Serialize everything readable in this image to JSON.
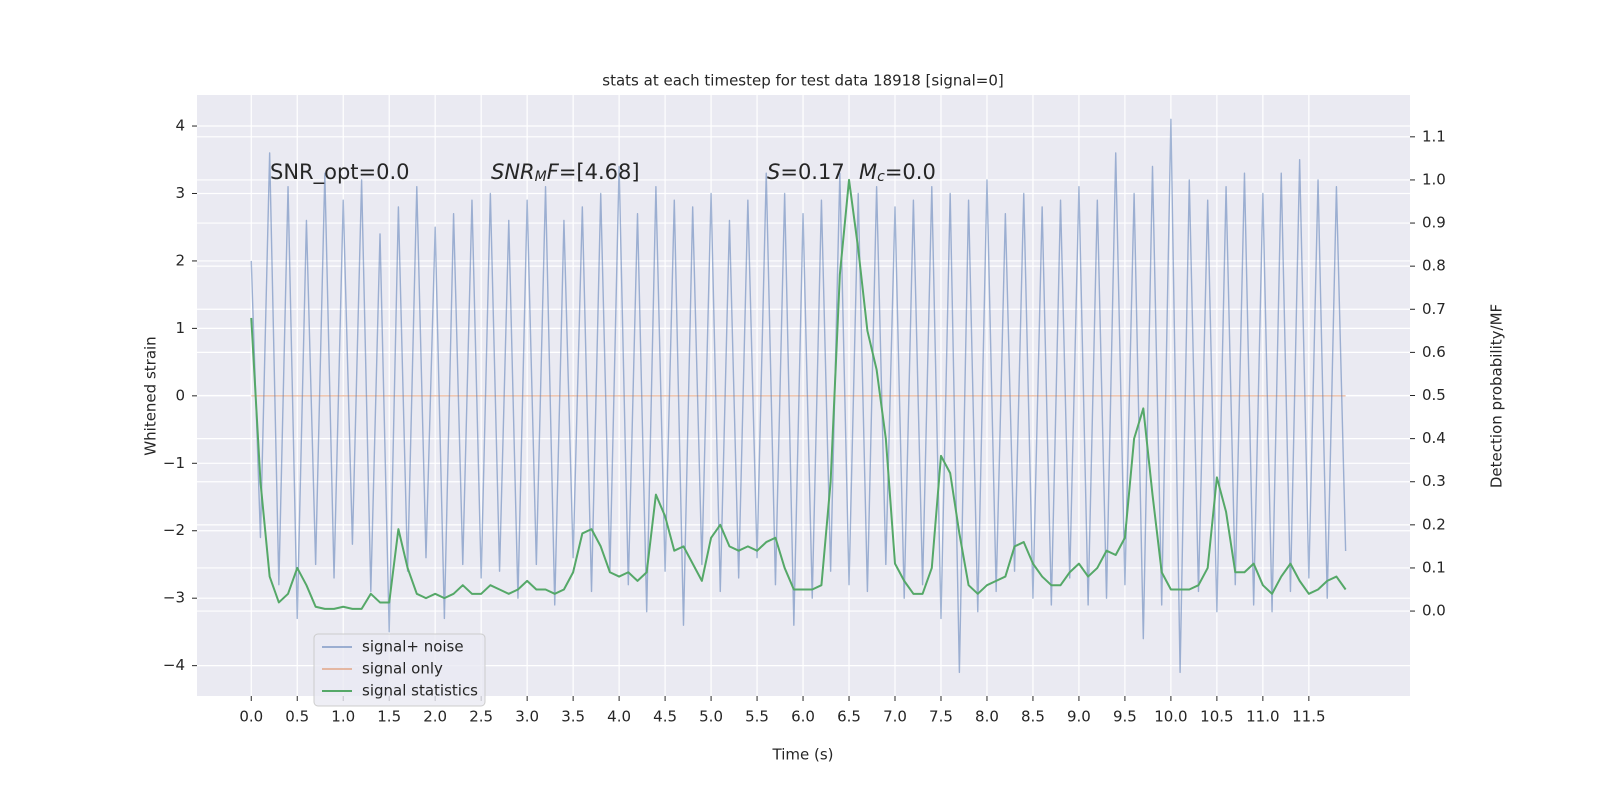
{
  "chart_data": {
    "type": "line",
    "title": "stats at each timestep for test data 18918 [signal=0]",
    "xlabel": "Time (s)",
    "ylabel": "Whitened strain",
    "y2label": "Detection probability/MF",
    "annotations": [
      {
        "parts": [
          {
            "text": "SNR_opt=0.0"
          }
        ]
      },
      {
        "parts": [
          {
            "text": "SNR",
            "italic": true
          },
          {
            "text": "M",
            "italic": true,
            "sub": true
          },
          {
            "text": "F",
            "italic": true
          },
          {
            "text": "=[4.68]"
          }
        ]
      },
      {
        "parts": [
          {
            "text": "S",
            "italic": true
          },
          {
            "text": "=0.17"
          }
        ]
      },
      {
        "parts": [
          {
            "text": "M",
            "italic": true
          },
          {
            "text": "c",
            "italic": true,
            "sub": true
          },
          {
            "text": "=0.0"
          }
        ]
      }
    ],
    "x": [
      0.0,
      0.1,
      0.2,
      0.3,
      0.4,
      0.5,
      0.6,
      0.7,
      0.8,
      0.9,
      1.0,
      1.1,
      1.2,
      1.3,
      1.4,
      1.5,
      1.6,
      1.7,
      1.8,
      1.9,
      2.0,
      2.1,
      2.2,
      2.3,
      2.4,
      2.5,
      2.6,
      2.7,
      2.8,
      2.9,
      3.0,
      3.1,
      3.2,
      3.3,
      3.4,
      3.5,
      3.6,
      3.7,
      3.8,
      3.9,
      4.0,
      4.1,
      4.2,
      4.3,
      4.4,
      4.5,
      4.6,
      4.7,
      4.8,
      4.9,
      5.0,
      5.1,
      5.2,
      5.3,
      5.4,
      5.5,
      5.6,
      5.7,
      5.8,
      5.9,
      6.0,
      6.1,
      6.2,
      6.3,
      6.4,
      6.5,
      6.6,
      6.7,
      6.8,
      6.9,
      7.0,
      7.1,
      7.2,
      7.3,
      7.4,
      7.5,
      7.6,
      7.7,
      7.8,
      7.9,
      8.0,
      8.1,
      8.2,
      8.3,
      8.4,
      8.5,
      8.6,
      8.7,
      8.8,
      8.9,
      9.0,
      9.1,
      9.2,
      9.3,
      9.4,
      9.5,
      9.6,
      9.7,
      9.8,
      9.9,
      10.0,
      10.1,
      10.2,
      10.3,
      10.4,
      10.5,
      10.6,
      10.7,
      10.8,
      10.9,
      11.0,
      11.1,
      11.2,
      11.3,
      11.4,
      11.5,
      11.6,
      11.7,
      11.8,
      11.9
    ],
    "series": [
      {
        "name": "signal+ noise",
        "color": "#4c72b0",
        "opacity": 0.5,
        "values": [
          2.0,
          -2.1,
          3.6,
          -2.8,
          3.1,
          -3.3,
          2.6,
          -2.5,
          3.3,
          -2.7,
          2.9,
          -2.2,
          3.2,
          -2.9,
          2.4,
          -3.5,
          2.8,
          -2.6,
          3.1,
          -2.4,
          2.5,
          -3.3,
          2.7,
          -2.5,
          2.9,
          -2.7,
          3.0,
          -2.6,
          2.6,
          -3.0,
          2.9,
          -2.5,
          3.1,
          -3.1,
          2.6,
          -2.4,
          2.8,
          -2.9,
          3.0,
          -2.6,
          3.4,
          -2.8,
          2.7,
          -3.2,
          3.1,
          -2.6,
          2.9,
          -3.4,
          2.8,
          -2.5,
          3.0,
          -2.9,
          2.6,
          -2.7,
          2.9,
          -2.4,
          3.3,
          -2.8,
          3.0,
          -3.4,
          2.7,
          -3.0,
          2.9,
          -2.6,
          3.3,
          -2.8,
          3.0,
          -2.9,
          3.1,
          -2.5,
          2.8,
          -3.0,
          2.9,
          -2.8,
          3.1,
          -3.3,
          3.0,
          -4.1,
          2.9,
          -3.2,
          3.2,
          -2.9,
          2.7,
          -2.6,
          3.0,
          -3.0,
          2.8,
          -3.1,
          2.9,
          -2.7,
          3.1,
          -3.1,
          2.9,
          -3.0,
          3.6,
          -2.8,
          3.0,
          -3.6,
          3.4,
          -3.1,
          4.1,
          -4.1,
          3.2,
          -2.9,
          2.9,
          -3.2,
          3.1,
          -2.8,
          3.3,
          -3.1,
          3.0,
          -3.2,
          3.3,
          -2.9,
          3.5,
          -2.7,
          3.2,
          -3.0,
          3.1,
          -2.3
        ]
      },
      {
        "name": "signal only",
        "color": "#dd8452",
        "opacity": 0.5,
        "values": [
          0,
          0,
          0,
          0,
          0,
          0,
          0,
          0,
          0,
          0,
          0,
          0,
          0,
          0,
          0,
          0,
          0,
          0,
          0,
          0,
          0,
          0,
          0,
          0,
          0,
          0,
          0,
          0,
          0,
          0,
          0,
          0,
          0,
          0,
          0,
          0,
          0,
          0,
          0,
          0,
          0,
          0,
          0,
          0,
          0,
          0,
          0,
          0,
          0,
          0,
          0,
          0,
          0,
          0,
          0,
          0,
          0,
          0,
          0,
          0,
          0,
          0,
          0,
          0,
          0,
          0,
          0,
          0,
          0,
          0,
          0,
          0,
          0,
          0,
          0,
          0,
          0,
          0,
          0,
          0,
          0,
          0,
          0,
          0,
          0,
          0,
          0,
          0,
          0,
          0,
          0,
          0,
          0,
          0,
          0,
          0,
          0,
          0,
          0,
          0,
          0,
          0,
          0,
          0,
          0,
          0,
          0,
          0,
          0,
          0,
          0,
          0,
          0,
          0,
          0,
          0,
          0,
          0,
          0,
          0
        ]
      },
      {
        "name": "signal statistics",
        "color": "#55a868",
        "opacity": 1,
        "axis": "y2",
        "values": [
          0.68,
          0.3,
          0.08,
          0.02,
          0.04,
          0.1,
          0.06,
          0.01,
          0.005,
          0.005,
          0.01,
          0.005,
          0.005,
          0.04,
          0.02,
          0.02,
          0.19,
          0.1,
          0.04,
          0.03,
          0.04,
          0.03,
          0.04,
          0.06,
          0.04,
          0.04,
          0.06,
          0.05,
          0.04,
          0.05,
          0.07,
          0.05,
          0.05,
          0.04,
          0.05,
          0.09,
          0.18,
          0.19,
          0.15,
          0.09,
          0.08,
          0.09,
          0.07,
          0.09,
          0.27,
          0.22,
          0.14,
          0.15,
          0.11,
          0.07,
          0.17,
          0.2,
          0.15,
          0.14,
          0.15,
          0.14,
          0.16,
          0.17,
          0.1,
          0.05,
          0.05,
          0.05,
          0.06,
          0.3,
          0.78,
          1.0,
          0.84,
          0.65,
          0.56,
          0.4,
          0.11,
          0.07,
          0.04,
          0.04,
          0.1,
          0.36,
          0.32,
          0.18,
          0.06,
          0.04,
          0.06,
          0.07,
          0.08,
          0.15,
          0.16,
          0.11,
          0.08,
          0.06,
          0.06,
          0.09,
          0.11,
          0.08,
          0.1,
          0.14,
          0.13,
          0.17,
          0.4,
          0.47,
          0.27,
          0.09,
          0.05,
          0.05,
          0.05,
          0.06,
          0.1,
          0.31,
          0.23,
          0.09,
          0.09,
          0.11,
          0.06,
          0.04,
          0.08,
          0.11,
          0.07,
          0.04,
          0.05,
          0.07,
          0.08,
          0.05
        ]
      }
    ],
    "xlim": [
      -0.59,
      12.6
    ],
    "ylim": [
      -4.45,
      4.46
    ],
    "y2lim": [
      -0.197,
      1.197
    ],
    "xticks": [
      {
        "value": 0,
        "label": "0.0"
      },
      0.5,
      {
        "value": 1,
        "label": "1.0"
      },
      1.5,
      {
        "value": 2,
        "label": "2.0"
      },
      2.5,
      {
        "value": 3,
        "label": "3.0"
      },
      3.5,
      {
        "value": 4,
        "label": "4.0"
      },
      4.5,
      {
        "value": 5,
        "label": "5.0"
      },
      5.5,
      {
        "value": 6,
        "label": "6.0"
      },
      6.5,
      {
        "value": 7,
        "label": "7.0"
      },
      7.5,
      {
        "value": 8,
        "label": "8.0"
      },
      8.5,
      {
        "value": 9,
        "label": "9.0"
      },
      9.5,
      {
        "value": 10,
        "label": "10.0"
      },
      10.5,
      {
        "value": 11,
        "label": "11.0"
      },
      11.5
    ],
    "yticks": [
      {
        "value": -4,
        "label": "−4"
      },
      {
        "value": -3,
        "label": "−3"
      },
      {
        "value": -2,
        "label": "−2"
      },
      {
        "value": -1,
        "label": "−1"
      },
      0,
      1,
      2,
      3,
      4
    ],
    "y2ticks": [
      {
        "value": 0,
        "label": "0.0"
      },
      0.1,
      0.2,
      0.3,
      0.4,
      0.5,
      0.6,
      0.7,
      0.8,
      0.9,
      {
        "value": 1,
        "label": "1.0"
      },
      1.1
    ],
    "grid": true,
    "legend": "lower left"
  }
}
